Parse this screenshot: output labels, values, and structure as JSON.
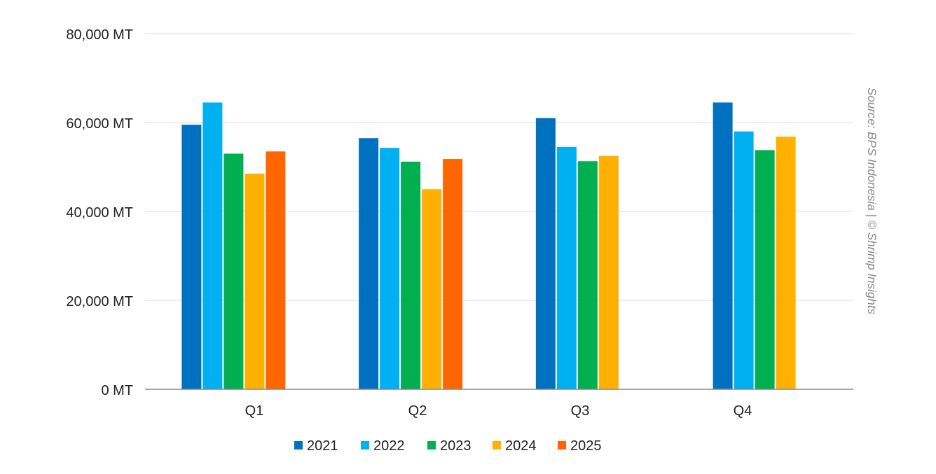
{
  "chart_data": {
    "type": "bar",
    "categories": [
      "Q1",
      "Q2",
      "Q3",
      "Q4"
    ],
    "series": [
      {
        "name": "2021",
        "color": "#0070C0",
        "values": [
          59500,
          56500,
          61000,
          64500
        ]
      },
      {
        "name": "2022",
        "color": "#00B0F0",
        "values": [
          64500,
          54300,
          54500,
          58000
        ]
      },
      {
        "name": "2023",
        "color": "#00B050",
        "values": [
          53000,
          51200,
          51300,
          53800
        ]
      },
      {
        "name": "2024",
        "color": "#FFB000",
        "values": [
          48500,
          45000,
          52500,
          56800
        ]
      },
      {
        "name": "2025",
        "color": "#FF6600",
        "values": [
          53500,
          51800,
          null,
          null
        ]
      }
    ],
    "y_ticks": [
      "0 MT",
      "20,000 MT",
      "40,000 MT",
      "60,000 MT",
      "80,000 MT"
    ],
    "ylim": [
      0,
      80000
    ],
    "grid": true,
    "legend_position": "bottom",
    "source_note": "Source: BPS Indonesia | © Shrimp Insights"
  }
}
